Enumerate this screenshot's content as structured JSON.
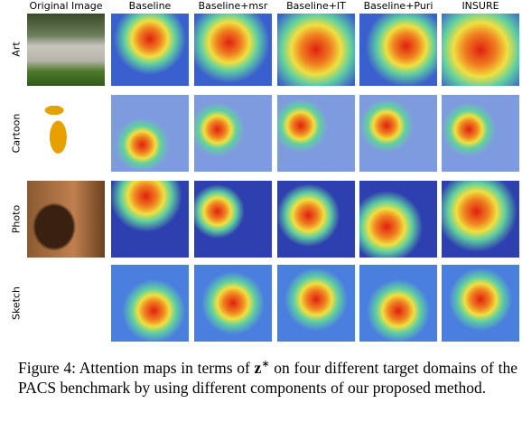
{
  "figure": {
    "columns": [
      "Original Image",
      "Baseline",
      "Baseline+msr",
      "Baseline+IT",
      "Baseline+Puri",
      "INSURE"
    ],
    "rows": [
      "Art",
      "Cartoon",
      "Photo",
      "Sketch"
    ],
    "caption": {
      "label": "Figure 4:",
      "text_before": "Attention maps in terms of",
      "symbol": "z",
      "superscript": "∗",
      "text_after": "on four different target domains of the PACS benchmark by using different components of our proposed method."
    }
  }
}
